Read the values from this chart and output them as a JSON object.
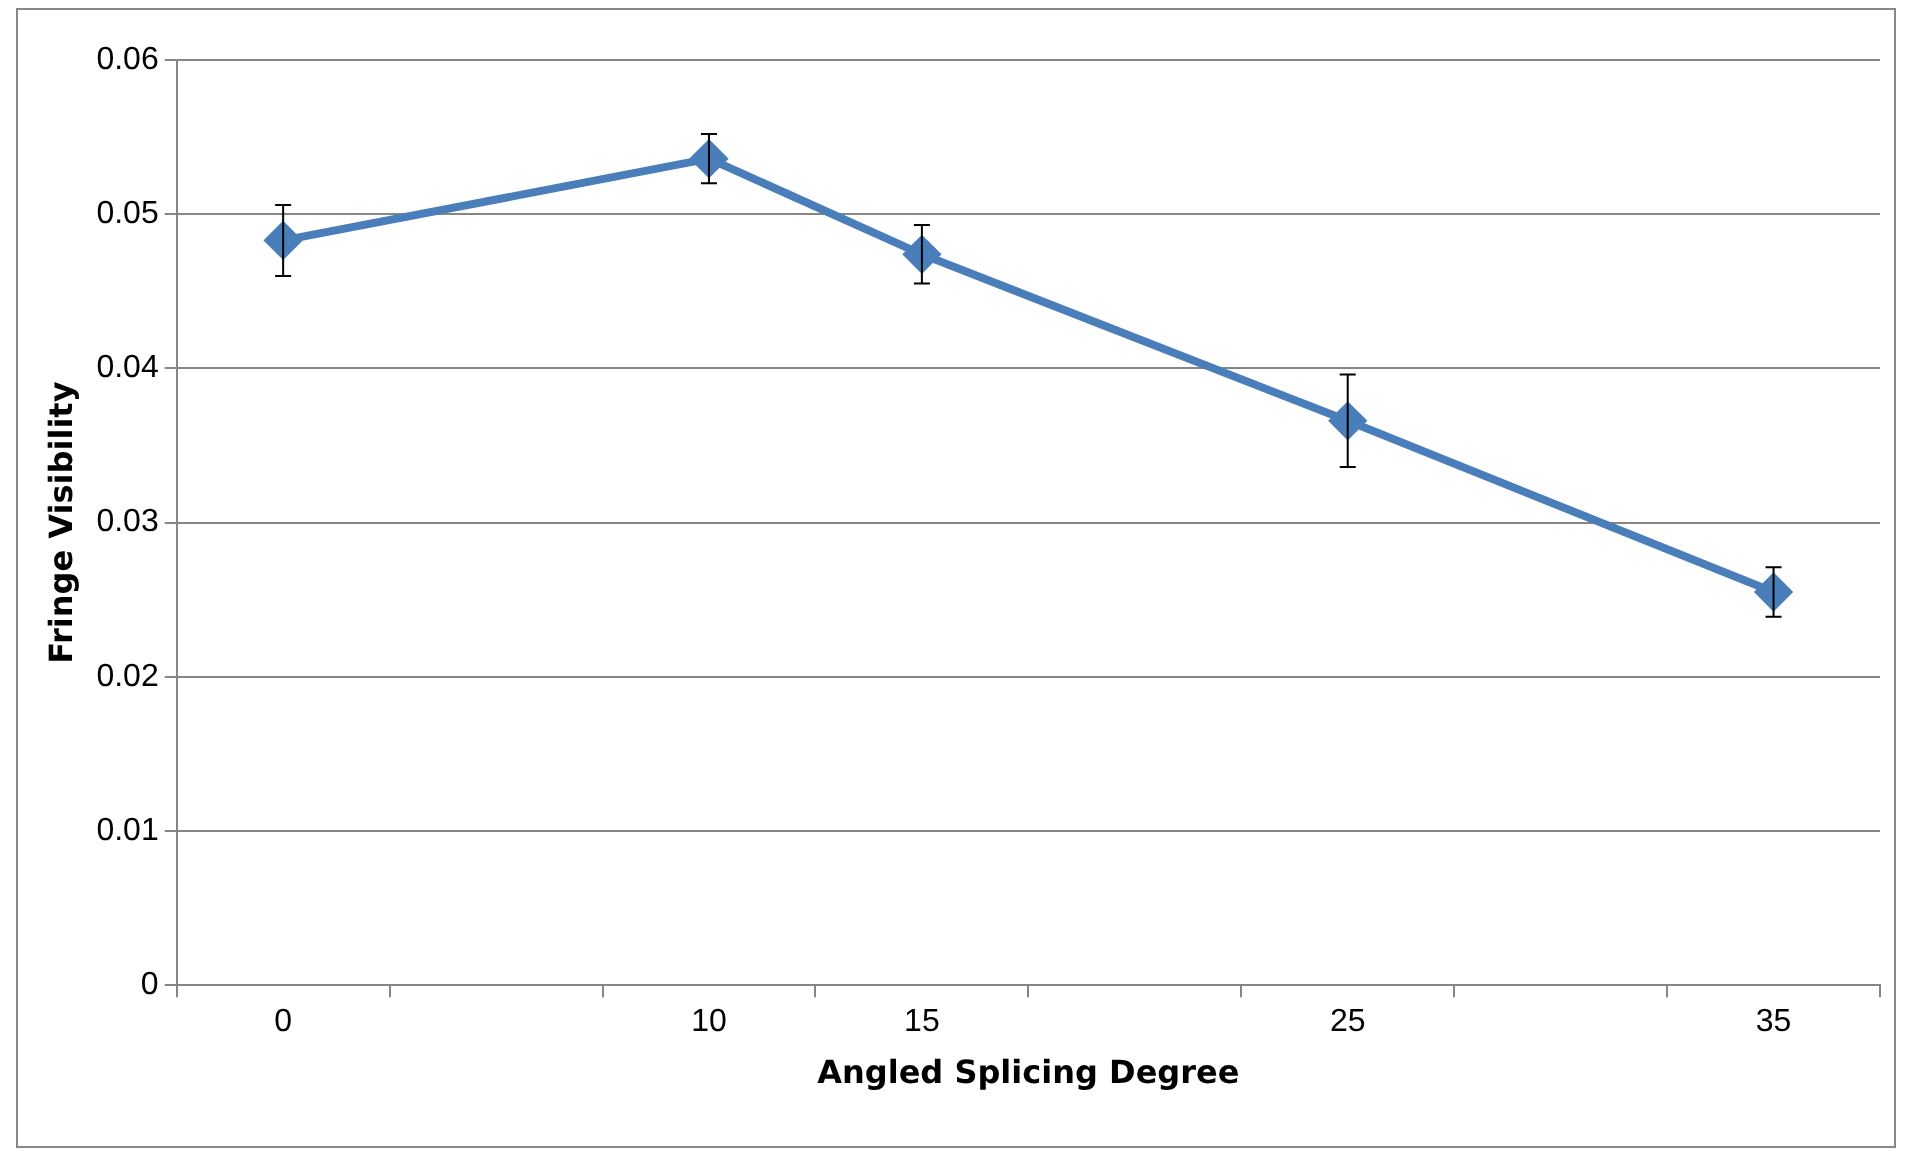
{
  "chart_data": {
    "type": "line",
    "xlabel": "Angled Splicing Degree",
    "ylabel": "Fringe Visibility",
    "categories": [
      "0",
      null,
      "10",
      "15",
      null,
      "25",
      null,
      "35"
    ],
    "series": [
      {
        "color": "#4a7ebb",
        "values": [
          0.0483,
          null,
          0.0536,
          0.0474,
          null,
          0.0366,
          null,
          0.0255
        ],
        "errors": [
          0.0023,
          null,
          0.0016,
          0.0019,
          null,
          0.003,
          null,
          0.0016
        ]
      }
    ],
    "ylim": [
      0,
      0.06
    ],
    "yticks": [
      0,
      0.01,
      0.02,
      0.03,
      0.04,
      0.05,
      0.06
    ],
    "grid": "y",
    "legend": false,
    "marker": "diamond",
    "line_style": "solid"
  }
}
